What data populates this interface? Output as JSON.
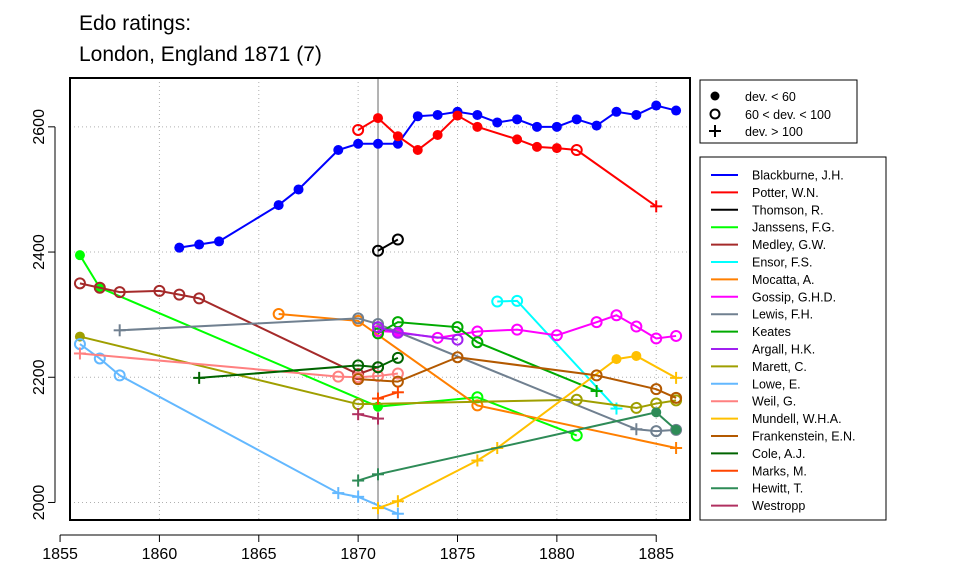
{
  "chart_data": {
    "type": "line",
    "title_lines": [
      "Edo ratings:",
      "London, England 1871 (7)"
    ],
    "xlabel": "",
    "ylabel": "",
    "xlim": [
      1855.5,
      1886.7
    ],
    "ylim": [
      1972,
      2678
    ],
    "x_ticks": [
      1855,
      1860,
      1865,
      1870,
      1875,
      1880,
      1885
    ],
    "y_ticks": [
      2000,
      2200,
      2400,
      2600
    ],
    "grid": "dotted",
    "reference_line_x": 1871,
    "marker_legend": [
      {
        "marker": "filled",
        "label": "dev. < 60"
      },
      {
        "marker": "open",
        "label": "60 < dev. < 100"
      },
      {
        "marker": "plus",
        "label": "dev. > 100"
      }
    ],
    "series": [
      {
        "name": "Blackburne, J.H.",
        "color": "#0000ff",
        "points": [
          [
            1861,
            2407,
            "f"
          ],
          [
            1862,
            2412,
            "f"
          ],
          [
            1863,
            2417,
            "f"
          ],
          [
            1866,
            2475,
            "f"
          ],
          [
            1867,
            2500,
            "f"
          ],
          [
            1869,
            2563,
            "f"
          ],
          [
            1870,
            2573,
            "f"
          ],
          [
            1871,
            2573,
            "f"
          ],
          [
            1872,
            2573,
            "f"
          ],
          [
            1873,
            2617,
            "f"
          ],
          [
            1874,
            2619,
            "f"
          ],
          [
            1875,
            2624,
            "f"
          ],
          [
            1876,
            2619,
            "f"
          ],
          [
            1877,
            2607,
            "f"
          ],
          [
            1878,
            2612,
            "f"
          ],
          [
            1879,
            2600,
            "f"
          ],
          [
            1880,
            2600,
            "f"
          ],
          [
            1881,
            2612,
            "f"
          ],
          [
            1882,
            2602,
            "f"
          ],
          [
            1883,
            2624,
            "f"
          ],
          [
            1884,
            2619,
            "f"
          ],
          [
            1885,
            2634,
            "f"
          ],
          [
            1886,
            2626,
            "f"
          ]
        ]
      },
      {
        "name": "Potter, W.N.",
        "color": "#ff0000",
        "points": [
          [
            1870,
            2595,
            "o"
          ],
          [
            1871,
            2614,
            "f"
          ],
          [
            1872,
            2585,
            "f"
          ],
          [
            1873,
            2563,
            "f"
          ],
          [
            1874,
            2587,
            "f"
          ],
          [
            1875,
            2618,
            "f"
          ],
          [
            1876,
            2600,
            "f"
          ],
          [
            1878,
            2580,
            "f"
          ],
          [
            1879,
            2568,
            "f"
          ],
          [
            1880,
            2566,
            "f"
          ],
          [
            1881,
            2563,
            "o"
          ],
          [
            1885,
            2473,
            "p"
          ]
        ]
      },
      {
        "name": "Thomson, R.",
        "color": "#000000",
        "points": [
          [
            1871,
            2402,
            "o"
          ],
          [
            1872,
            2420,
            "o"
          ]
        ]
      },
      {
        "name": "Janssens, F.G.",
        "color": "#00ff00",
        "points": [
          [
            1856,
            2395,
            "f"
          ],
          [
            1857,
            2343,
            "f"
          ],
          [
            1871,
            2153,
            "f"
          ],
          [
            1876,
            2168,
            "o"
          ],
          [
            1881,
            2107,
            "o"
          ]
        ]
      },
      {
        "name": "Medley, G.W.",
        "color": "#a52a2a",
        "points": [
          [
            1856,
            2350,
            "o"
          ],
          [
            1857,
            2343,
            "o"
          ],
          [
            1858,
            2336,
            "o"
          ],
          [
            1860,
            2338,
            "o"
          ],
          [
            1861,
            2332,
            "o"
          ],
          [
            1862,
            2326,
            "o"
          ],
          [
            1870,
            2205,
            "o"
          ],
          [
            1871,
            2216,
            "o"
          ]
        ]
      },
      {
        "name": "Ensor, F.S.",
        "color": "#00ffff",
        "points": [
          [
            1877,
            2321,
            "o"
          ],
          [
            1878,
            2322,
            "o"
          ],
          [
            1883,
            2150,
            "p"
          ]
        ]
      },
      {
        "name": "Mocatta, A.",
        "color": "#ff7f00",
        "points": [
          [
            1866,
            2301,
            "o"
          ],
          [
            1870,
            2290,
            "o"
          ],
          [
            1876,
            2155,
            "o"
          ],
          [
            1886,
            2087,
            "p"
          ]
        ]
      },
      {
        "name": "Gossip, G.H.D.",
        "color": "#ff00ff",
        "points": [
          [
            1871,
            2274,
            "o"
          ],
          [
            1872,
            2272,
            "f"
          ],
          [
            1874,
            2263,
            "o"
          ],
          [
            1876,
            2273,
            "o"
          ],
          [
            1878,
            2276,
            "o"
          ],
          [
            1880,
            2267,
            "o"
          ],
          [
            1882,
            2288,
            "o"
          ],
          [
            1883,
            2299,
            "o"
          ],
          [
            1884,
            2281,
            "o"
          ],
          [
            1885,
            2262,
            "o"
          ],
          [
            1886,
            2266,
            "o"
          ]
        ]
      },
      {
        "name": "Lewis, F.H.",
        "color": "#708090",
        "points": [
          [
            1858,
            2275,
            "p"
          ],
          [
            1870,
            2294,
            "o"
          ],
          [
            1871,
            2285,
            "o"
          ],
          [
            1884,
            2117,
            "p"
          ],
          [
            1885,
            2114,
            "o"
          ],
          [
            1886,
            2116,
            "o"
          ]
        ]
      },
      {
        "name": "Keates",
        "color": "#00aa00",
        "points": [
          [
            1871,
            2270,
            "o"
          ],
          [
            1872,
            2288,
            "o"
          ],
          [
            1875,
            2280,
            "o"
          ],
          [
            1876,
            2256,
            "o"
          ],
          [
            1882,
            2178,
            "p"
          ]
        ]
      },
      {
        "name": "Argall, H.K.",
        "color": "#a020f0",
        "points": [
          [
            1871,
            2280,
            "o"
          ],
          [
            1872,
            2271,
            "o"
          ],
          [
            1875,
            2260,
            "o"
          ]
        ]
      },
      {
        "name": "Marett, C.",
        "color": "#9f9f00",
        "points": [
          [
            1856,
            2265,
            "f"
          ],
          [
            1870,
            2157,
            "o"
          ],
          [
            1881,
            2164,
            "o"
          ],
          [
            1884,
            2151,
            "o"
          ],
          [
            1885,
            2158,
            "o"
          ],
          [
            1886,
            2163,
            "o"
          ]
        ]
      },
      {
        "name": "Lowe, E.",
        "color": "#63b8ff",
        "points": [
          [
            1856,
            2253,
            "o"
          ],
          [
            1857,
            2230,
            "o"
          ],
          [
            1858,
            2203,
            "o"
          ],
          [
            1869,
            2015,
            "p"
          ],
          [
            1870,
            2009,
            "p"
          ],
          [
            1872,
            1982,
            "p"
          ]
        ]
      },
      {
        "name": "Weil, G.",
        "color": "#ff8080",
        "points": [
          [
            1856,
            2238,
            "p"
          ],
          [
            1869,
            2201,
            "o"
          ],
          [
            1870,
            2200,
            "o"
          ],
          [
            1871,
            2202,
            "o"
          ],
          [
            1872,
            2206,
            "o"
          ]
        ]
      },
      {
        "name": "Mundell, W.H.A.",
        "color": "#ffc000",
        "points": [
          [
            1871,
            1991,
            "p"
          ],
          [
            1872,
            2002,
            "p"
          ],
          [
            1876,
            2067,
            "p"
          ],
          [
            1877,
            2087,
            "p"
          ],
          [
            1883,
            2229,
            "f"
          ],
          [
            1884,
            2234,
            "f"
          ],
          [
            1886,
            2199,
            "p"
          ]
        ]
      },
      {
        "name": "Frankenstein, E.N.",
        "color": "#b35900",
        "points": [
          [
            1870,
            2197,
            "o"
          ],
          [
            1872,
            2193,
            "o"
          ],
          [
            1875,
            2232,
            "o"
          ],
          [
            1882,
            2203,
            "o"
          ],
          [
            1885,
            2181,
            "o"
          ],
          [
            1886,
            2167,
            "o"
          ]
        ]
      },
      {
        "name": "Cole, A.J.",
        "color": "#006400",
        "points": [
          [
            1862,
            2199,
            "p"
          ],
          [
            1870,
            2219,
            "o"
          ],
          [
            1871,
            2216,
            "o"
          ],
          [
            1872,
            2231,
            "o"
          ]
        ]
      },
      {
        "name": "Marks, M.",
        "color": "#ff4500",
        "points": [
          [
            1871,
            2166,
            "p"
          ],
          [
            1872,
            2176,
            "p"
          ]
        ]
      },
      {
        "name": "Hewitt, T.",
        "color": "#2e8b57",
        "points": [
          [
            1870,
            2035,
            "p"
          ],
          [
            1871,
            2045,
            "p"
          ],
          [
            1885,
            2144,
            "f"
          ],
          [
            1886,
            2116,
            "f"
          ]
        ]
      },
      {
        "name": "Westropp",
        "color": "#b03060",
        "points": [
          [
            1870,
            2141,
            "p"
          ],
          [
            1871,
            2134,
            "p"
          ]
        ]
      }
    ]
  }
}
